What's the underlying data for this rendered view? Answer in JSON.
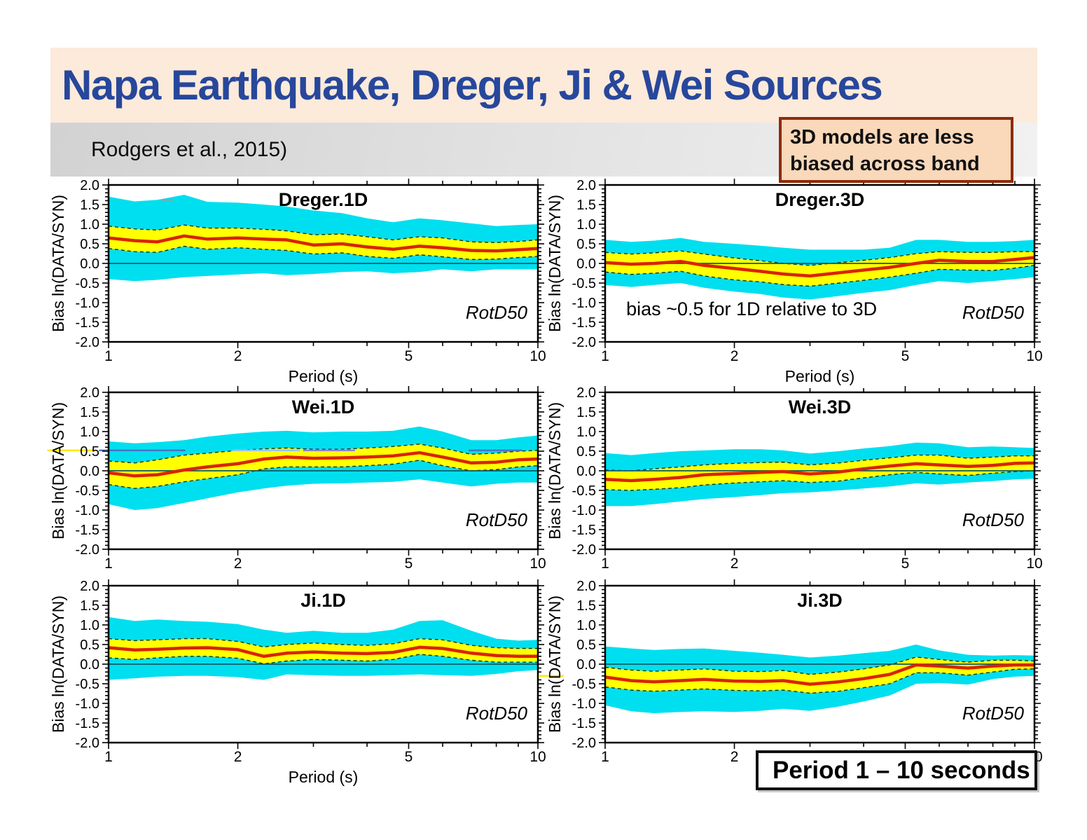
{
  "slide": {
    "title": "Napa Earthquake, Dreger, Ji & Wei Sources",
    "subtitle": "Rodgers et al., 2015)",
    "callout": {
      "line1": "3D models are less",
      "line2": "biased across band"
    },
    "period_box": "Period 1 – 10 seconds",
    "colors": {
      "title_color": "#27479b",
      "banner_bg": "#fceadb",
      "callout_bg": "#fad8ba",
      "callout_border": "#8d2b0b",
      "band_outer": "#00dfef",
      "band_inner": "#ffff02",
      "mean_line": "#d82400",
      "zero_line": "#0a5a66"
    }
  },
  "axes": {
    "xlabel": "Period (s)",
    "ylabel": "Bias ln(DATA/SYN)",
    "xscale": "log",
    "xlim": [
      1,
      10
    ],
    "ylim": [
      -2,
      2
    ],
    "xticks_labeled": [
      1,
      2,
      5,
      10
    ],
    "xticks_minor": [
      3,
      4,
      6,
      7,
      8,
      9
    ],
    "ytick_values": [
      2,
      1.5,
      1,
      0.5,
      0,
      -0.5,
      -1,
      -1.5,
      -2
    ],
    "ytick_labels": [
      "2.0",
      "1.5",
      "1.0",
      "0.5",
      "0.0",
      "-0.5",
      "-1.0",
      "-1.5",
      "-2.0"
    ],
    "ytick_minor_step": 0.1,
    "grid": false,
    "legend": "none"
  },
  "chart_data": [
    {
      "id": "dreger-1d",
      "type": "area",
      "title": "Dreger.1D",
      "corner_label": "RotD50",
      "show_xlabel": true,
      "x": [
        1.0,
        1.15,
        1.3,
        1.5,
        1.7,
        2.0,
        2.3,
        2.6,
        3.0,
        3.5,
        4.0,
        4.6,
        5.3,
        6.0,
        7.0,
        8.0,
        9.0,
        10.0
      ],
      "series": {
        "mean": [
          0.65,
          0.58,
          0.55,
          0.7,
          0.62,
          0.65,
          0.62,
          0.6,
          0.47,
          0.5,
          0.42,
          0.36,
          0.44,
          0.4,
          0.33,
          0.32,
          0.35,
          0.38
        ],
        "inner_hi": [
          0.95,
          0.88,
          0.85,
          0.98,
          0.9,
          0.9,
          0.87,
          0.83,
          0.73,
          0.75,
          0.68,
          0.6,
          0.68,
          0.65,
          0.55,
          0.53,
          0.56,
          0.6
        ],
        "inner_lo": [
          0.38,
          0.3,
          0.28,
          0.44,
          0.36,
          0.4,
          0.36,
          0.33,
          0.24,
          0.27,
          0.18,
          0.13,
          0.22,
          0.17,
          0.1,
          0.11,
          0.15,
          0.18
        ],
        "outer_hi": [
          1.7,
          1.58,
          1.62,
          1.75,
          1.57,
          1.55,
          1.5,
          1.45,
          1.35,
          1.28,
          1.15,
          1.05,
          1.15,
          1.1,
          1.02,
          0.95,
          0.98,
          1.0
        ],
        "outer_lo": [
          -0.4,
          -0.45,
          -0.42,
          -0.35,
          -0.32,
          -0.28,
          -0.25,
          -0.3,
          -0.27,
          -0.22,
          -0.2,
          -0.25,
          -0.22,
          -0.15,
          -0.2,
          -0.15,
          -0.15,
          -0.15
        ]
      },
      "stray_lines": [
        {
          "x1": 1.33,
          "x2": 1.42,
          "y": 1.62,
          "color": "#8fa0a8",
          "w": 2.5
        }
      ]
    },
    {
      "id": "dreger-3d",
      "type": "area",
      "title": "Dreger.3D",
      "corner_label": "RotD50",
      "show_xlabel": true,
      "annotation": {
        "text": "bias ~0.5 for 1D relative to 3D",
        "x": 1.12,
        "y": -1.32
      },
      "x": [
        1.0,
        1.15,
        1.3,
        1.5,
        1.7,
        2.0,
        2.3,
        2.6,
        3.0,
        3.5,
        4.0,
        4.6,
        5.3,
        6.0,
        7.0,
        8.0,
        9.0,
        10.0
      ],
      "series": {
        "mean": [
          0.02,
          -0.02,
          0.0,
          0.05,
          -0.05,
          -0.13,
          -0.2,
          -0.27,
          -0.32,
          -0.24,
          -0.17,
          -0.1,
          0.0,
          0.08,
          0.05,
          0.05,
          0.1,
          0.15
        ],
        "inner_hi": [
          0.28,
          0.24,
          0.27,
          0.32,
          0.24,
          0.14,
          0.07,
          0.0,
          -0.05,
          0.02,
          0.08,
          0.15,
          0.25,
          0.3,
          0.28,
          0.28,
          0.3,
          0.3
        ],
        "inner_lo": [
          -0.22,
          -0.28,
          -0.25,
          -0.2,
          -0.32,
          -0.42,
          -0.47,
          -0.54,
          -0.58,
          -0.5,
          -0.43,
          -0.35,
          -0.25,
          -0.15,
          -0.17,
          -0.18,
          -0.12,
          -0.05
        ],
        "outer_hi": [
          0.6,
          0.55,
          0.58,
          0.65,
          0.55,
          0.5,
          0.45,
          0.4,
          0.35,
          0.35,
          0.35,
          0.4,
          0.6,
          0.6,
          0.55,
          0.55,
          0.57,
          0.6
        ],
        "outer_lo": [
          -0.55,
          -0.6,
          -0.55,
          -0.5,
          -0.62,
          -0.72,
          -0.78,
          -0.87,
          -0.92,
          -0.83,
          -0.75,
          -0.68,
          -0.55,
          -0.45,
          -0.5,
          -0.45,
          -0.4,
          -0.35
        ]
      }
    },
    {
      "id": "wei-1d",
      "type": "area",
      "title": "Wei.1D",
      "corner_label": "RotD50",
      "show_xlabel": false,
      "x": [
        1.0,
        1.15,
        1.3,
        1.5,
        1.7,
        2.0,
        2.3,
        2.6,
        3.0,
        3.5,
        4.0,
        4.6,
        5.3,
        6.0,
        7.0,
        8.0,
        9.0,
        10.0
      ],
      "series": {
        "mean": [
          -0.05,
          -0.13,
          -0.1,
          0.02,
          0.1,
          0.18,
          0.3,
          0.35,
          0.32,
          0.33,
          0.35,
          0.38,
          0.46,
          0.35,
          0.2,
          0.22,
          0.28,
          0.3
        ],
        "inner_hi": [
          0.25,
          0.2,
          0.28,
          0.4,
          0.45,
          0.52,
          0.56,
          0.58,
          0.55,
          0.55,
          0.58,
          0.62,
          0.68,
          0.58,
          0.42,
          0.45,
          0.5,
          0.52
        ],
        "inner_lo": [
          -0.35,
          -0.45,
          -0.4,
          -0.28,
          -0.2,
          -0.1,
          0.05,
          0.1,
          0.1,
          0.1,
          0.13,
          0.17,
          0.27,
          0.13,
          0.0,
          0.03,
          0.1,
          0.13
        ],
        "outer_hi": [
          0.75,
          0.7,
          0.73,
          0.78,
          0.87,
          0.95,
          1.0,
          1.02,
          0.98,
          1.0,
          1.0,
          1.02,
          1.13,
          1.0,
          0.78,
          0.78,
          0.85,
          0.9
        ],
        "outer_lo": [
          -0.85,
          -1.0,
          -0.95,
          -0.82,
          -0.7,
          -0.55,
          -0.45,
          -0.38,
          -0.33,
          -0.32,
          -0.3,
          -0.28,
          -0.22,
          -0.3,
          -0.4,
          -0.33,
          -0.3,
          -0.3
        ]
      },
      "stray_lines": [
        {
          "x1": 0.72,
          "x2": 0.93,
          "y": 0.52,
          "color": "#ffe800",
          "w": 2.5
        },
        {
          "x1": 0.95,
          "x2": 1.51,
          "y": 0.52,
          "color": "#4a74c4",
          "w": 2.5
        },
        {
          "x1": 1.95,
          "x2": 2.79,
          "y": 0.52,
          "color": "#9dc3e6",
          "w": 2.5
        },
        {
          "x1": 2.84,
          "x2": 3.75,
          "y": 0.52,
          "color": "#9b7dc8",
          "w": 2.5
        },
        {
          "x1": 6.9,
          "x2": 9.2,
          "y": 0.52,
          "color": "#4a74c4",
          "w": 2.5
        }
      ]
    },
    {
      "id": "wei-3d",
      "type": "area",
      "title": "Wei.3D",
      "corner_label": "RotD50",
      "show_xlabel": false,
      "x": [
        1.0,
        1.15,
        1.3,
        1.5,
        1.7,
        2.0,
        2.3,
        2.6,
        3.0,
        3.5,
        4.0,
        4.6,
        5.3,
        6.0,
        7.0,
        8.0,
        9.0,
        10.0
      ],
      "series": {
        "mean": [
          -0.22,
          -0.25,
          -0.22,
          -0.17,
          -0.1,
          -0.07,
          -0.04,
          -0.02,
          -0.08,
          -0.03,
          0.05,
          0.12,
          0.18,
          0.15,
          0.11,
          0.14,
          0.19,
          0.2
        ],
        "inner_hi": [
          0.02,
          0.0,
          0.05,
          0.1,
          0.15,
          0.19,
          0.21,
          0.22,
          0.15,
          0.2,
          0.27,
          0.33,
          0.4,
          0.4,
          0.32,
          0.35,
          0.38,
          0.38
        ],
        "inner_lo": [
          -0.48,
          -0.5,
          -0.47,
          -0.43,
          -0.36,
          -0.31,
          -0.28,
          -0.25,
          -0.3,
          -0.26,
          -0.18,
          -0.1,
          -0.04,
          -0.08,
          -0.12,
          -0.06,
          -0.02,
          0.0
        ],
        "outer_hi": [
          0.45,
          0.4,
          0.45,
          0.5,
          0.52,
          0.55,
          0.55,
          0.52,
          0.44,
          0.5,
          0.57,
          0.63,
          0.72,
          0.7,
          0.6,
          0.62,
          0.6,
          0.58
        ],
        "outer_lo": [
          -0.9,
          -0.9,
          -0.85,
          -0.78,
          -0.72,
          -0.67,
          -0.62,
          -0.57,
          -0.55,
          -0.5,
          -0.45,
          -0.4,
          -0.32,
          -0.35,
          -0.3,
          -0.26,
          -0.22,
          -0.2
        ]
      }
    },
    {
      "id": "ji-1d",
      "type": "area",
      "title": "Ji.1D",
      "corner_label": "RotD50",
      "show_xlabel": true,
      "x": [
        1.0,
        1.15,
        1.3,
        1.5,
        1.7,
        2.0,
        2.3,
        2.6,
        3.0,
        3.5,
        4.0,
        4.6,
        5.3,
        6.0,
        7.0,
        8.0,
        9.0,
        10.0
      ],
      "series": {
        "mean": [
          0.42,
          0.36,
          0.38,
          0.41,
          0.42,
          0.37,
          0.2,
          0.28,
          0.31,
          0.28,
          0.27,
          0.3,
          0.43,
          0.4,
          0.28,
          0.22,
          0.2,
          0.2
        ],
        "inner_hi": [
          0.65,
          0.6,
          0.62,
          0.65,
          0.65,
          0.58,
          0.44,
          0.5,
          0.54,
          0.5,
          0.48,
          0.52,
          0.65,
          0.62,
          0.48,
          0.42,
          0.4,
          0.4
        ],
        "inner_lo": [
          0.16,
          0.12,
          0.16,
          0.2,
          0.2,
          0.15,
          0.01,
          0.08,
          0.12,
          0.1,
          0.08,
          0.12,
          0.25,
          0.2,
          0.1,
          0.05,
          0.05,
          0.05
        ],
        "outer_hi": [
          1.2,
          1.1,
          1.14,
          1.1,
          1.08,
          1.02,
          0.88,
          0.8,
          0.85,
          0.8,
          0.8,
          0.88,
          1.1,
          1.12,
          0.85,
          0.65,
          0.6,
          0.62
        ],
        "outer_lo": [
          -0.4,
          -0.36,
          -0.32,
          -0.3,
          -0.3,
          -0.33,
          -0.4,
          -0.26,
          -0.28,
          -0.3,
          -0.3,
          -0.28,
          -0.26,
          -0.28,
          -0.3,
          -0.25,
          -0.18,
          -0.15
        ]
      }
    },
    {
      "id": "ji-3d",
      "type": "area",
      "title": "Ji.3D",
      "corner_label": "RotD50",
      "show_xlabel": false,
      "x": [
        1.0,
        1.15,
        1.3,
        1.5,
        1.7,
        2.0,
        2.3,
        2.6,
        3.0,
        3.5,
        4.0,
        4.6,
        5.3,
        6.0,
        7.0,
        8.0,
        9.0,
        10.0
      ],
      "series": {
        "mean": [
          -0.33,
          -0.42,
          -0.45,
          -0.42,
          -0.39,
          -0.43,
          -0.44,
          -0.42,
          -0.51,
          -0.45,
          -0.37,
          -0.26,
          -0.02,
          -0.05,
          -0.1,
          -0.05,
          -0.02,
          -0.02
        ],
        "inner_hi": [
          -0.08,
          -0.15,
          -0.18,
          -0.15,
          -0.12,
          -0.18,
          -0.19,
          -0.16,
          -0.26,
          -0.2,
          -0.12,
          -0.02,
          0.18,
          0.12,
          0.05,
          0.1,
          0.1,
          0.08
        ],
        "inner_lo": [
          -0.58,
          -0.66,
          -0.69,
          -0.66,
          -0.63,
          -0.67,
          -0.68,
          -0.66,
          -0.74,
          -0.69,
          -0.6,
          -0.5,
          -0.22,
          -0.22,
          -0.28,
          -0.2,
          -0.13,
          -0.12
        ],
        "outer_hi": [
          0.45,
          0.4,
          0.36,
          0.39,
          0.4,
          0.34,
          0.29,
          0.24,
          0.17,
          0.22,
          0.28,
          0.34,
          0.5,
          0.35,
          0.24,
          0.22,
          0.23,
          0.22
        ],
        "outer_lo": [
          -1.05,
          -1.2,
          -1.25,
          -1.22,
          -1.2,
          -1.22,
          -1.19,
          -1.14,
          -1.19,
          -1.08,
          -0.95,
          -0.8,
          -0.5,
          -0.48,
          -0.52,
          -0.38,
          -0.32,
          -0.3
        ]
      },
      "stray_lines": [
        {
          "x1": 0.7,
          "x2": 0.8,
          "y": -0.3,
          "color": "#ffe800",
          "w": 2.5
        }
      ]
    }
  ]
}
